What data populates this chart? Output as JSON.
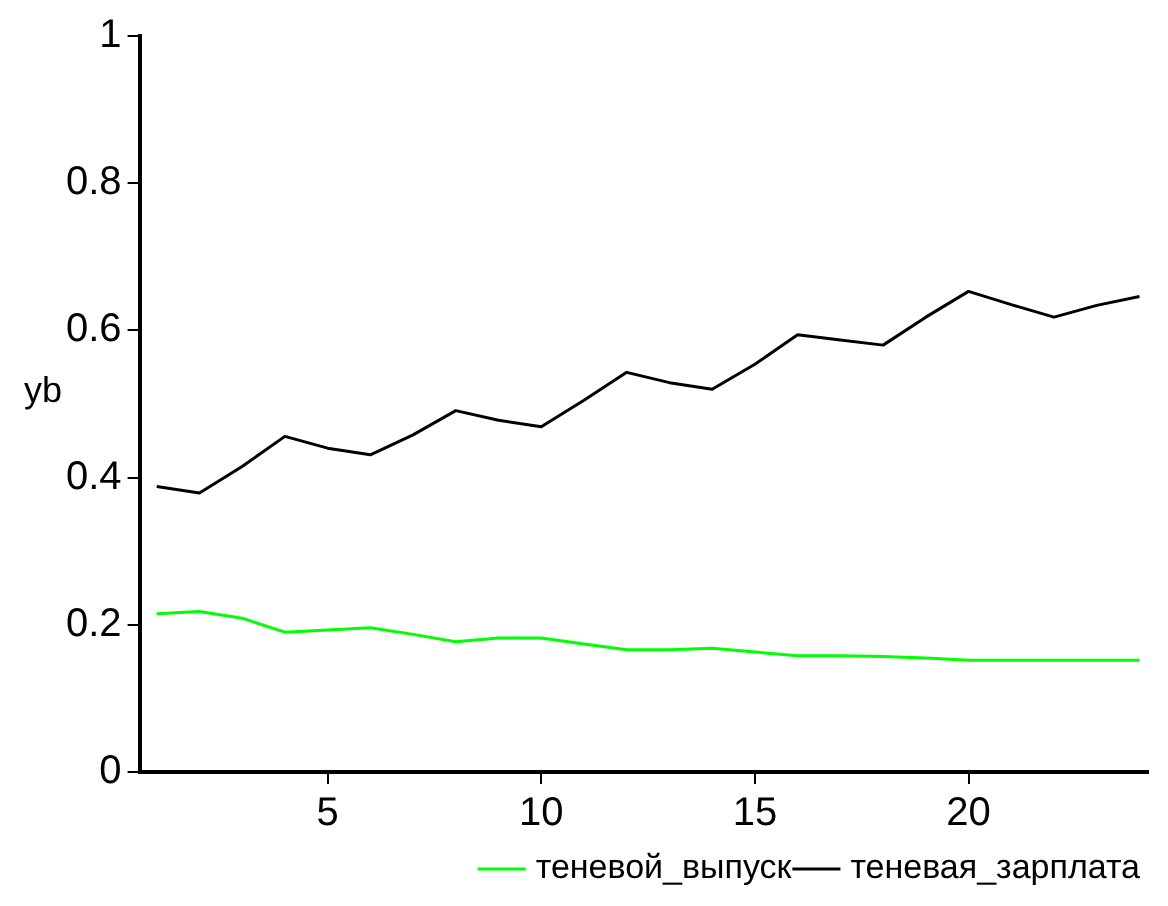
{
  "chart_data": {
    "type": "line",
    "ylabel": "yb",
    "x": [
      1,
      2,
      3,
      4,
      5,
      6,
      7,
      8,
      9,
      10,
      11,
      12,
      13,
      14,
      15,
      16,
      17,
      18,
      19,
      20,
      21,
      22,
      23,
      24
    ],
    "xlim": [
      0.6,
      24.2
    ],
    "xticks": [
      5,
      10,
      15,
      20
    ],
    "ylim": [
      0,
      1
    ],
    "yticks": [
      0,
      0.2,
      0.4,
      0.6,
      0.8,
      1
    ],
    "grid": false,
    "legend": "bottom right",
    "marker": "none",
    "line_style": "solid",
    "series": [
      {
        "name": "теневой_выпуск",
        "color": "#00ff00",
        "values": [
          0.215,
          0.218,
          0.209,
          0.19,
          0.193,
          0.196,
          0.187,
          0.177,
          0.182,
          0.182,
          0.174,
          0.166,
          0.166,
          0.168,
          0.163,
          0.158,
          0.158,
          0.157,
          0.155,
          0.152,
          0.152,
          0.152,
          0.152,
          0.152
        ]
      },
      {
        "name": "теневая_зарплата",
        "color": "#000000",
        "values": [
          0.388,
          0.379,
          0.415,
          0.456,
          0.44,
          0.431,
          0.458,
          0.491,
          0.478,
          0.469,
          0.505,
          0.543,
          0.529,
          0.52,
          0.554,
          0.594,
          0.587,
          0.58,
          0.618,
          0.653,
          0.635,
          0.618,
          0.634,
          0.646
        ]
      }
    ]
  }
}
